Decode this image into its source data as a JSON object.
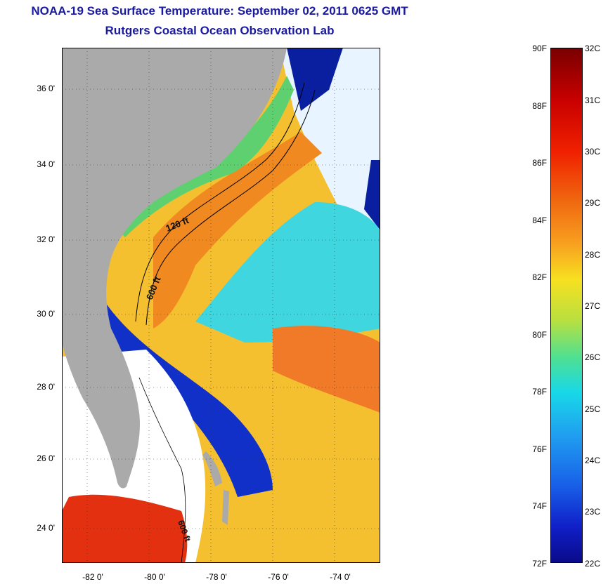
{
  "title": {
    "line1": "NOAA-19 Sea Surface Temperature:  September 02, 2011 0625 GMT",
    "line2": "Rutgers Coastal Ocean Observation Lab"
  },
  "map": {
    "y_ticks": [
      "36 0'",
      "34 0'",
      "32 0'",
      "30 0'",
      "28 0'",
      "26 0'",
      "24 0'"
    ],
    "x_ticks": [
      "-82 0'",
      "-80 0'",
      "-78 0'",
      "-76 0'",
      "-74 0'"
    ],
    "contour_labels": {
      "c120": "120 ft",
      "c600a": "600 ft",
      "c600b": "600 ft"
    }
  },
  "colorbar": {
    "fahrenheit": [
      "90F",
      "88F",
      "86F",
      "84F",
      "82F",
      "80F",
      "78F",
      "76F",
      "74F",
      "72F"
    ],
    "celsius": [
      "32C",
      "31C",
      "30C",
      "29C",
      "28C",
      "27C",
      "26C",
      "25C",
      "24C",
      "23C",
      "22C"
    ]
  },
  "colors": {
    "land": "#aaaaaa",
    "cloud": "#ffffff",
    "warm": "#f08a20",
    "cool": "#18d0e8",
    "cold": "#0a1ea0",
    "title": "#1a1aa0"
  }
}
